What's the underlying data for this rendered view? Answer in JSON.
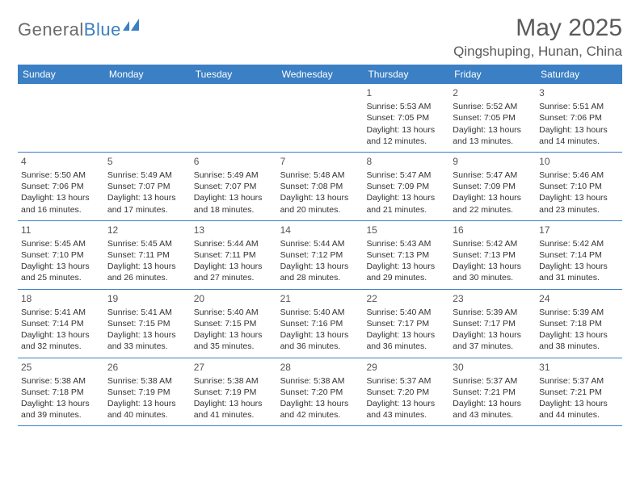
{
  "brand": {
    "text_gray": "General",
    "text_blue": "Blue",
    "logo_color": "#3b7fc4"
  },
  "title": {
    "month": "May 2025",
    "location": "Qingshuping, Hunan, China"
  },
  "colors": {
    "header_bg": "#3b7fc4",
    "text": "#333333",
    "muted": "#5a5a5a"
  },
  "weekdays": [
    "Sunday",
    "Monday",
    "Tuesday",
    "Wednesday",
    "Thursday",
    "Friday",
    "Saturday"
  ],
  "weeks": [
    [
      null,
      null,
      null,
      null,
      {
        "n": "1",
        "sr": "Sunrise: 5:53 AM",
        "ss": "Sunset: 7:05 PM",
        "d1": "Daylight: 13 hours",
        "d2": "and 12 minutes."
      },
      {
        "n": "2",
        "sr": "Sunrise: 5:52 AM",
        "ss": "Sunset: 7:05 PM",
        "d1": "Daylight: 13 hours",
        "d2": "and 13 minutes."
      },
      {
        "n": "3",
        "sr": "Sunrise: 5:51 AM",
        "ss": "Sunset: 7:06 PM",
        "d1": "Daylight: 13 hours",
        "d2": "and 14 minutes."
      }
    ],
    [
      {
        "n": "4",
        "sr": "Sunrise: 5:50 AM",
        "ss": "Sunset: 7:06 PM",
        "d1": "Daylight: 13 hours",
        "d2": "and 16 minutes."
      },
      {
        "n": "5",
        "sr": "Sunrise: 5:49 AM",
        "ss": "Sunset: 7:07 PM",
        "d1": "Daylight: 13 hours",
        "d2": "and 17 minutes."
      },
      {
        "n": "6",
        "sr": "Sunrise: 5:49 AM",
        "ss": "Sunset: 7:07 PM",
        "d1": "Daylight: 13 hours",
        "d2": "and 18 minutes."
      },
      {
        "n": "7",
        "sr": "Sunrise: 5:48 AM",
        "ss": "Sunset: 7:08 PM",
        "d1": "Daylight: 13 hours",
        "d2": "and 20 minutes."
      },
      {
        "n": "8",
        "sr": "Sunrise: 5:47 AM",
        "ss": "Sunset: 7:09 PM",
        "d1": "Daylight: 13 hours",
        "d2": "and 21 minutes."
      },
      {
        "n": "9",
        "sr": "Sunrise: 5:47 AM",
        "ss": "Sunset: 7:09 PM",
        "d1": "Daylight: 13 hours",
        "d2": "and 22 minutes."
      },
      {
        "n": "10",
        "sr": "Sunrise: 5:46 AM",
        "ss": "Sunset: 7:10 PM",
        "d1": "Daylight: 13 hours",
        "d2": "and 23 minutes."
      }
    ],
    [
      {
        "n": "11",
        "sr": "Sunrise: 5:45 AM",
        "ss": "Sunset: 7:10 PM",
        "d1": "Daylight: 13 hours",
        "d2": "and 25 minutes."
      },
      {
        "n": "12",
        "sr": "Sunrise: 5:45 AM",
        "ss": "Sunset: 7:11 PM",
        "d1": "Daylight: 13 hours",
        "d2": "and 26 minutes."
      },
      {
        "n": "13",
        "sr": "Sunrise: 5:44 AM",
        "ss": "Sunset: 7:11 PM",
        "d1": "Daylight: 13 hours",
        "d2": "and 27 minutes."
      },
      {
        "n": "14",
        "sr": "Sunrise: 5:44 AM",
        "ss": "Sunset: 7:12 PM",
        "d1": "Daylight: 13 hours",
        "d2": "and 28 minutes."
      },
      {
        "n": "15",
        "sr": "Sunrise: 5:43 AM",
        "ss": "Sunset: 7:13 PM",
        "d1": "Daylight: 13 hours",
        "d2": "and 29 minutes."
      },
      {
        "n": "16",
        "sr": "Sunrise: 5:42 AM",
        "ss": "Sunset: 7:13 PM",
        "d1": "Daylight: 13 hours",
        "d2": "and 30 minutes."
      },
      {
        "n": "17",
        "sr": "Sunrise: 5:42 AM",
        "ss": "Sunset: 7:14 PM",
        "d1": "Daylight: 13 hours",
        "d2": "and 31 minutes."
      }
    ],
    [
      {
        "n": "18",
        "sr": "Sunrise: 5:41 AM",
        "ss": "Sunset: 7:14 PM",
        "d1": "Daylight: 13 hours",
        "d2": "and 32 minutes."
      },
      {
        "n": "19",
        "sr": "Sunrise: 5:41 AM",
        "ss": "Sunset: 7:15 PM",
        "d1": "Daylight: 13 hours",
        "d2": "and 33 minutes."
      },
      {
        "n": "20",
        "sr": "Sunrise: 5:40 AM",
        "ss": "Sunset: 7:15 PM",
        "d1": "Daylight: 13 hours",
        "d2": "and 35 minutes."
      },
      {
        "n": "21",
        "sr": "Sunrise: 5:40 AM",
        "ss": "Sunset: 7:16 PM",
        "d1": "Daylight: 13 hours",
        "d2": "and 36 minutes."
      },
      {
        "n": "22",
        "sr": "Sunrise: 5:40 AM",
        "ss": "Sunset: 7:17 PM",
        "d1": "Daylight: 13 hours",
        "d2": "and 36 minutes."
      },
      {
        "n": "23",
        "sr": "Sunrise: 5:39 AM",
        "ss": "Sunset: 7:17 PM",
        "d1": "Daylight: 13 hours",
        "d2": "and 37 minutes."
      },
      {
        "n": "24",
        "sr": "Sunrise: 5:39 AM",
        "ss": "Sunset: 7:18 PM",
        "d1": "Daylight: 13 hours",
        "d2": "and 38 minutes."
      }
    ],
    [
      {
        "n": "25",
        "sr": "Sunrise: 5:38 AM",
        "ss": "Sunset: 7:18 PM",
        "d1": "Daylight: 13 hours",
        "d2": "and 39 minutes."
      },
      {
        "n": "26",
        "sr": "Sunrise: 5:38 AM",
        "ss": "Sunset: 7:19 PM",
        "d1": "Daylight: 13 hours",
        "d2": "and 40 minutes."
      },
      {
        "n": "27",
        "sr": "Sunrise: 5:38 AM",
        "ss": "Sunset: 7:19 PM",
        "d1": "Daylight: 13 hours",
        "d2": "and 41 minutes."
      },
      {
        "n": "28",
        "sr": "Sunrise: 5:38 AM",
        "ss": "Sunset: 7:20 PM",
        "d1": "Daylight: 13 hours",
        "d2": "and 42 minutes."
      },
      {
        "n": "29",
        "sr": "Sunrise: 5:37 AM",
        "ss": "Sunset: 7:20 PM",
        "d1": "Daylight: 13 hours",
        "d2": "and 43 minutes."
      },
      {
        "n": "30",
        "sr": "Sunrise: 5:37 AM",
        "ss": "Sunset: 7:21 PM",
        "d1": "Daylight: 13 hours",
        "d2": "and 43 minutes."
      },
      {
        "n": "31",
        "sr": "Sunrise: 5:37 AM",
        "ss": "Sunset: 7:21 PM",
        "d1": "Daylight: 13 hours",
        "d2": "and 44 minutes."
      }
    ]
  ]
}
